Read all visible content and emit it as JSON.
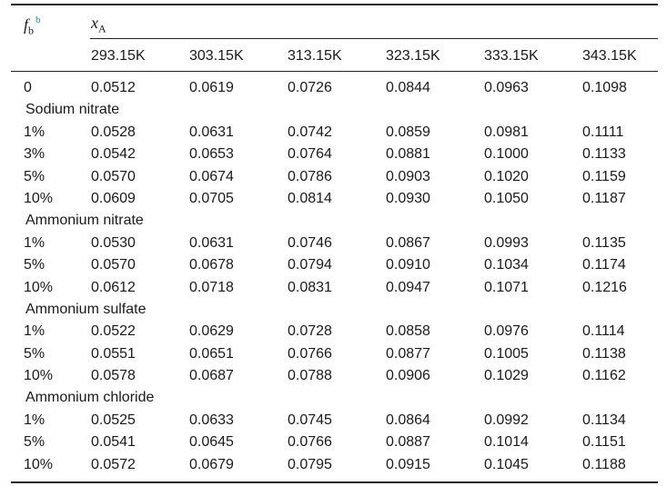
{
  "header": {
    "fb_main": "f",
    "fb_sub": "b",
    "fb_sup": "b",
    "xa_main": "x",
    "xa_sub": "A",
    "temperatures": [
      "293.15K",
      "303.15K",
      "313.15K",
      "323.15K",
      "333.15K",
      "343.15K"
    ]
  },
  "rows": [
    {
      "type": "data",
      "f": "0",
      "v": [
        "0.0512",
        "0.0619",
        "0.0726",
        "0.0844",
        "0.0963",
        "0.1098"
      ]
    },
    {
      "type": "group",
      "label": "Sodium nitrate"
    },
    {
      "type": "data",
      "f": "1%",
      "v": [
        "0.0528",
        "0.0631",
        "0.0742",
        "0.0859",
        "0.0981",
        "0.1111"
      ]
    },
    {
      "type": "data",
      "f": "3%",
      "v": [
        "0.0542",
        "0.0653",
        "0.0764",
        "0.0881",
        "0.1000",
        "0.1133"
      ]
    },
    {
      "type": "data",
      "f": "5%",
      "v": [
        "0.0570",
        "0.0674",
        "0.0786",
        "0.0903",
        "0.1020",
        "0.1159"
      ]
    },
    {
      "type": "data",
      "f": "10%",
      "v": [
        "0.0609",
        "0.0705",
        "0.0814",
        "0.0930",
        "0.1050",
        "0.1187"
      ]
    },
    {
      "type": "group",
      "label": "Ammonium nitrate"
    },
    {
      "type": "data",
      "f": "1%",
      "v": [
        "0.0530",
        "0.0631",
        "0.0746",
        "0.0867",
        "0.0993",
        "0.1135"
      ]
    },
    {
      "type": "data",
      "f": "5%",
      "v": [
        "0.0570",
        "0.0678",
        "0.0794",
        "0.0910",
        "0.1034",
        "0.1174"
      ]
    },
    {
      "type": "data",
      "f": "10%",
      "v": [
        "0.0612",
        "0.0718",
        "0.0831",
        "0.0947",
        "0.1071",
        "0.1216"
      ]
    },
    {
      "type": "group",
      "label": "Ammonium sulfate"
    },
    {
      "type": "data",
      "f": "1%",
      "v": [
        "0.0522",
        "0.0629",
        "0.0728",
        "0.0858",
        "0.0976",
        "0.1114"
      ]
    },
    {
      "type": "data",
      "f": "5%",
      "v": [
        "0.0551",
        "0.0651",
        "0.0766",
        "0.0877",
        "0.1005",
        "0.1138"
      ]
    },
    {
      "type": "data",
      "f": "10%",
      "v": [
        "0.0578",
        "0.0687",
        "0.0788",
        "0.0906",
        "0.1029",
        "0.1162"
      ]
    },
    {
      "type": "group",
      "label": "Ammonium chloride"
    },
    {
      "type": "data",
      "f": "1%",
      "v": [
        "0.0525",
        "0.0633",
        "0.0745",
        "0.0864",
        "0.0992",
        "0.1134"
      ]
    },
    {
      "type": "data",
      "f": "5%",
      "v": [
        "0.0541",
        "0.0645",
        "0.0766",
        "0.0887",
        "0.1014",
        "0.1151"
      ]
    },
    {
      "type": "data",
      "f": "10%",
      "v": [
        "0.0572",
        "0.0679",
        "0.0795",
        "0.0915",
        "0.1045",
        "0.1188"
      ]
    }
  ]
}
